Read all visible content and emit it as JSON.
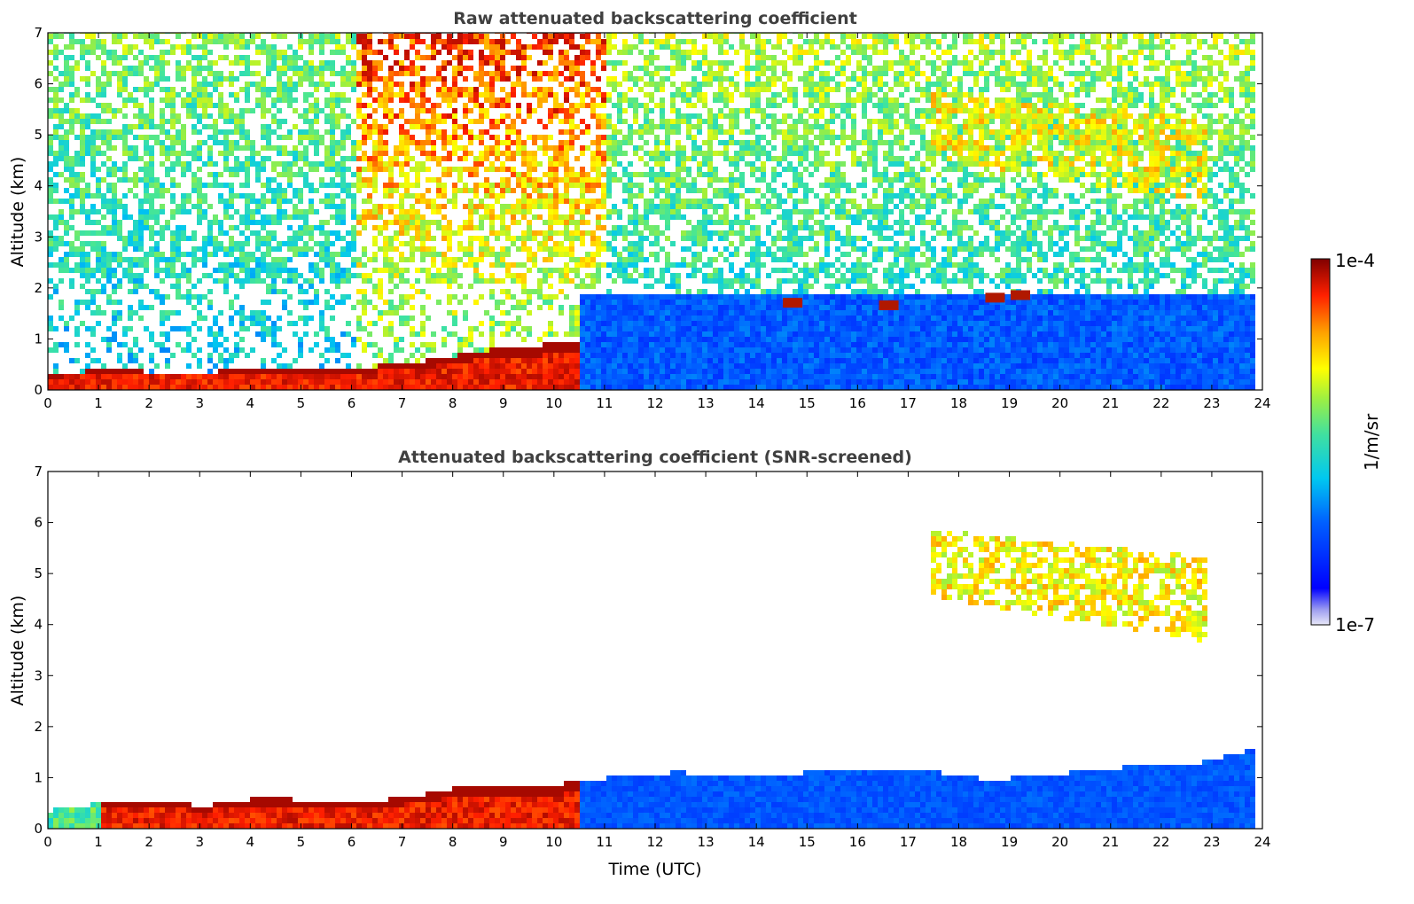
{
  "chart_data": [
    {
      "type": "heatmap",
      "title": "Raw attenuated backscattering coefficient",
      "xlabel": "",
      "ylabel": "Altitude (km)",
      "xlim": [
        0,
        24
      ],
      "ylim": [
        0,
        7
      ],
      "x_ticks": [
        "0",
        "1",
        "2",
        "3",
        "4",
        "5",
        "6",
        "7",
        "8",
        "9",
        "10",
        "11",
        "12",
        "13",
        "14",
        "15",
        "16",
        "17",
        "18",
        "19",
        "20",
        "21",
        "22",
        "23",
        "24"
      ],
      "y_ticks": [
        "0",
        "1",
        "2",
        "3",
        "4",
        "5",
        "6",
        "7"
      ],
      "features": [
        {
          "kind": "boundary_layer",
          "t0": 0,
          "t1": 10.5,
          "top_km": [
            0.25,
            0.35,
            0.3,
            0.3,
            0.4,
            0.35,
            0.4,
            0.5,
            0.7,
            0.8,
            0.95
          ],
          "intensity": "high"
        },
        {
          "kind": "cirrus",
          "t0": 17.4,
          "t1": 22.9,
          "base_km": 3.6,
          "top_km": 5.8,
          "intensity": "medium-high"
        },
        {
          "kind": "cloud_patches",
          "times": [
            14.7,
            16.6,
            18.7,
            19.2
          ],
          "alt_km": [
            1.7,
            1.65,
            1.8,
            1.85
          ]
        }
      ]
    },
    {
      "type": "heatmap",
      "title": "Attenuated backscattering coefficient (SNR-screened)",
      "xlabel": "Time (UTC)",
      "ylabel": "Altitude (km)",
      "xlim": [
        0,
        24
      ],
      "ylim": [
        0,
        7
      ],
      "x_ticks": [
        "0",
        "1",
        "2",
        "3",
        "4",
        "5",
        "6",
        "7",
        "8",
        "9",
        "10",
        "11",
        "12",
        "13",
        "14",
        "15",
        "16",
        "17",
        "18",
        "19",
        "20",
        "21",
        "22",
        "23",
        "24"
      ],
      "y_ticks": [
        "0",
        "1",
        "2",
        "3",
        "4",
        "5",
        "6",
        "7"
      ],
      "features": [
        {
          "kind": "boundary_layer",
          "t0": 0,
          "t1": 23.8,
          "top_km": [
            0.3,
            0.45,
            0.45,
            0.4,
            0.55,
            0.5,
            0.45,
            0.6,
            0.8,
            0.75,
            0.85,
            1.0,
            1.05,
            1.0,
            1.0,
            1.1,
            1.1,
            1.05,
            0.9,
            1.0,
            1.1,
            1.2,
            1.25,
            1.5
          ],
          "intensity": "high-to-low"
        },
        {
          "kind": "cirrus",
          "t0": 17.4,
          "t1": 22.9,
          "base_km": 3.6,
          "top_km": 5.8,
          "intensity": "medium-high"
        }
      ]
    }
  ],
  "colorbar": {
    "max_label": "1e-4",
    "min_label": "1e-7",
    "unit_label": "1/m/sr",
    "scale": "log",
    "colormap": "jet"
  }
}
